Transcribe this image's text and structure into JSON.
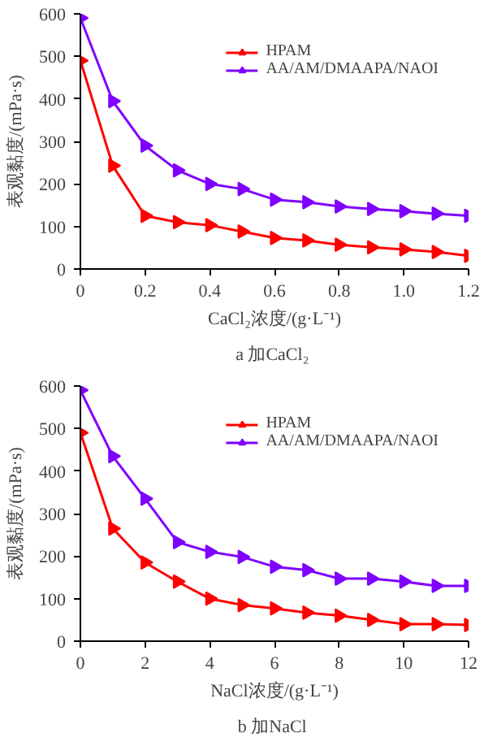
{
  "chart_data": [
    {
      "type": "line",
      "xlabel": "CaCl₂浓度/(g·L⁻¹)",
      "ylabel": "表观黏度/(mPa·s)",
      "annotations": [
        "a  加CaCl₂"
      ],
      "x": [
        0,
        0.1,
        0.2,
        0.3,
        0.4,
        0.5,
        0.6,
        0.7,
        0.8,
        0.9,
        1.0,
        1.1,
        1.2
      ],
      "series": [
        {
          "name": "HPAM",
          "color": "#ff0000",
          "values": [
            490,
            243,
            125,
            110,
            103,
            88,
            73,
            67,
            57,
            51,
            46,
            40,
            31
          ]
        },
        {
          "name": "AA/AM/DMAAPA/NAOI",
          "color": "#7f00ff",
          "values": [
            590,
            395,
            290,
            232,
            200,
            188,
            163,
            157,
            147,
            141,
            136,
            130,
            125
          ]
        }
      ],
      "xlim": [
        0,
        1.2
      ],
      "xticks": [
        0,
        0.2,
        0.4,
        0.6,
        0.8,
        {
          "value": 1.0,
          "label": "1.0"
        },
        1.2
      ],
      "ylim": [
        0,
        600
      ],
      "yticks": [
        0,
        100,
        200,
        300,
        400,
        500,
        600
      ],
      "legend": "top right",
      "marker": "triangle",
      "grid": false
    },
    {
      "type": "line",
      "xlabel": "NaCl浓度/(g·L⁻¹)",
      "ylabel": "表观黏度/(mPa·s)",
      "annotations": [
        "b  加NaCl"
      ],
      "x": [
        0,
        1,
        2,
        3,
        4,
        5,
        6,
        7,
        8,
        9,
        10,
        11,
        12
      ],
      "series": [
        {
          "name": "HPAM",
          "color": "#ff0000",
          "values": [
            490,
            265,
            185,
            140,
            100,
            85,
            77,
            67,
            60,
            50,
            40,
            40,
            38
          ]
        },
        {
          "name": "AA/AM/DMAAPA/NAOI",
          "color": "#7f00ff",
          "values": [
            590,
            435,
            335,
            233,
            210,
            198,
            175,
            167,
            147,
            147,
            140,
            130,
            130
          ]
        }
      ],
      "xlim": [
        0,
        12
      ],
      "xticks": [
        0,
        2,
        4,
        6,
        8,
        10,
        12
      ],
      "ylim": [
        0,
        600
      ],
      "yticks": [
        0,
        100,
        200,
        300,
        400,
        500,
        600
      ],
      "legend": "top right",
      "marker": "triangle",
      "grid": false
    }
  ]
}
